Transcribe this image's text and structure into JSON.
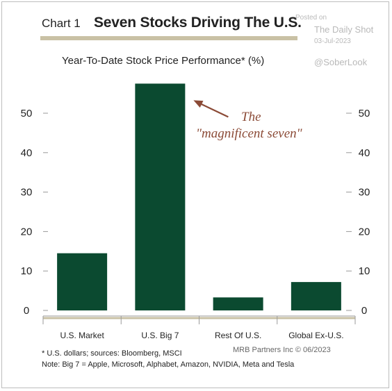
{
  "header": {
    "chart_number": "Chart 1",
    "title": "Seven Stocks Driving The U.S."
  },
  "watermark": {
    "posted": "Posted on",
    "source": "The Daily Shot",
    "date": "03-Jul-2023",
    "handle": "@SoberLook"
  },
  "footer": {
    "note1": "* U.S. dollars; sources: Bloomberg, MSCI",
    "note2": "Note: Big 7 = Apple, Microsoft, Alphabet, Amazon, NVIDIA, Meta and Tesla",
    "credit": "MRB Partners Inc © 06/2023"
  },
  "colors": {
    "bar": "#0b4a30",
    "title_rule": "#c9c1a5",
    "annotation": "#8b4a36"
  },
  "chart_data": {
    "type": "bar",
    "title": "Seven Stocks Driving The U.S.",
    "subtitle": "Year-To-Date Stock Price Performance* (%)",
    "categories": [
      "U.S. Market",
      "U.S. Big 7",
      "Rest Of U.S.",
      "Global Ex-U.S."
    ],
    "values": [
      14.5,
      57.5,
      3.3,
      7.2
    ],
    "ylim": [
      0,
      60
    ],
    "yticks": [
      0,
      10,
      20,
      30,
      40,
      50
    ],
    "axis_both_sides": true,
    "grid": false,
    "annotation": {
      "line1": "The",
      "line2": "\"magnificent seven\"",
      "points_to": "U.S. Big 7"
    }
  }
}
